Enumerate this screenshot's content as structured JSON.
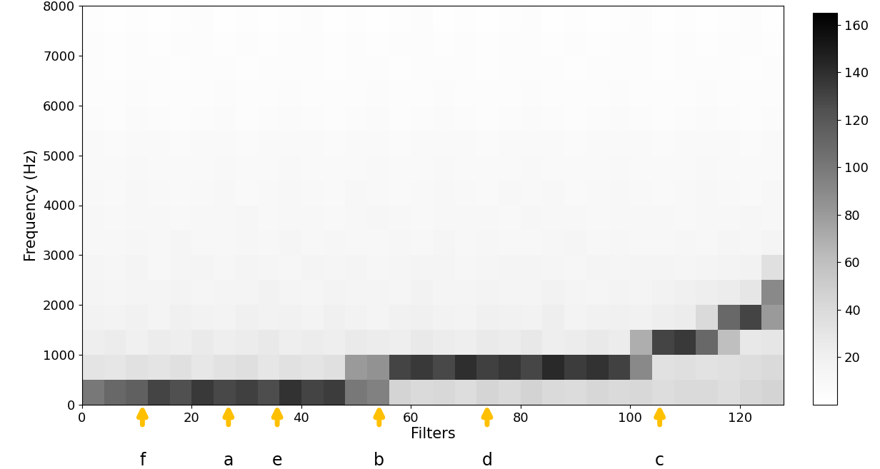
{
  "chart_data": {
    "type": "heatmap",
    "xlabel": "Filters",
    "ylabel": "Frequency (Hz)",
    "xlim": [
      0,
      128
    ],
    "xticks": [
      0,
      20,
      40,
      60,
      80,
      100,
      120
    ],
    "ylim": [
      0,
      8000
    ],
    "yticks": [
      0,
      1000,
      2000,
      3000,
      4000,
      5000,
      6000,
      7000,
      8000
    ],
    "color_range": [
      0,
      165
    ],
    "color_ticks": [
      20,
      40,
      60,
      80,
      100,
      120,
      140,
      160
    ],
    "cells": [
      [
        100,
        110,
        115,
        130,
        125,
        135,
        128,
        132,
        126,
        138,
        130,
        134,
        100,
        95,
        45,
        40,
        42,
        38,
        44,
        40,
        46,
        41,
        39,
        43,
        40,
        42,
        38,
        40,
        41,
        37,
        42,
        45
      ],
      [
        32,
        30,
        34,
        31,
        35,
        29,
        33,
        36,
        30,
        34,
        31,
        35,
        80,
        85,
        130,
        135,
        128,
        140,
        132,
        136,
        129,
        142,
        134,
        138,
        131,
        90,
        34,
        36,
        33,
        35,
        38,
        40
      ],
      [
        22,
        24,
        21,
        25,
        23,
        26,
        22,
        24,
        27,
        23,
        25,
        22,
        26,
        24,
        23,
        27,
        25,
        22,
        26,
        24,
        28,
        23,
        25,
        27,
        24,
        70,
        130,
        135,
        110,
        60,
        28,
        30
      ],
      [
        18,
        17,
        19,
        16,
        20,
        18,
        17,
        21,
        18,
        19,
        17,
        20,
        18,
        16,
        19,
        21,
        18,
        17,
        20,
        19,
        18,
        22,
        17,
        19,
        20,
        19,
        22,
        24,
        40,
        110,
        130,
        80
      ],
      [
        15,
        14,
        16,
        15,
        17,
        14,
        15,
        16,
        18,
        15,
        14,
        17,
        16,
        15,
        14,
        18,
        16,
        15,
        17,
        16,
        15,
        18,
        16,
        14,
        17,
        16,
        18,
        20,
        22,
        25,
        30,
        90
      ],
      [
        14,
        13,
        15,
        12,
        14,
        16,
        13,
        15,
        14,
        13,
        16,
        14,
        15,
        13,
        14,
        16,
        15,
        13,
        14,
        15,
        16,
        14,
        13,
        15,
        14,
        16,
        15,
        14,
        16,
        17,
        18,
        35
      ],
      [
        12,
        11,
        13,
        12,
        14,
        11,
        12,
        13,
        12,
        14,
        11,
        13,
        12,
        12,
        13,
        11,
        14,
        12,
        13,
        12,
        11,
        13,
        14,
        12,
        13,
        12,
        11,
        13,
        12,
        14,
        13,
        15
      ],
      [
        11,
        10,
        12,
        11,
        10,
        12,
        11,
        13,
        10,
        11,
        12,
        10,
        11,
        13,
        12,
        10,
        11,
        12,
        11,
        10,
        13,
        11,
        12,
        10,
        11,
        12,
        11,
        10,
        12,
        11,
        13,
        12
      ],
      [
        10,
        9,
        11,
        10,
        9,
        10,
        11,
        9,
        10,
        12,
        10,
        9,
        11,
        10,
        9,
        10,
        11,
        10,
        9,
        12,
        10,
        11,
        9,
        10,
        11,
        10,
        9,
        10,
        11,
        10,
        9,
        11
      ],
      [
        9,
        8,
        10,
        9,
        8,
        9,
        10,
        8,
        9,
        10,
        9,
        8,
        9,
        10,
        8,
        9,
        10,
        9,
        8,
        9,
        10,
        9,
        8,
        9,
        10,
        9,
        8,
        9,
        10,
        9,
        8,
        9
      ],
      [
        8,
        7,
        9,
        8,
        7,
        8,
        9,
        7,
        8,
        9,
        8,
        7,
        8,
        9,
        7,
        8,
        9,
        8,
        7,
        8,
        9,
        8,
        7,
        8,
        9,
        8,
        7,
        8,
        9,
        8,
        7,
        8
      ],
      [
        6,
        5,
        7,
        6,
        5,
        6,
        7,
        5,
        6,
        7,
        6,
        5,
        6,
        7,
        5,
        6,
        7,
        6,
        5,
        6,
        7,
        6,
        5,
        6,
        7,
        6,
        5,
        6,
        7,
        6,
        5,
        6
      ],
      [
        5,
        4,
        6,
        5,
        4,
        5,
        6,
        4,
        5,
        6,
        5,
        4,
        5,
        6,
        4,
        5,
        6,
        5,
        4,
        5,
        6,
        5,
        4,
        5,
        6,
        5,
        4,
        5,
        6,
        5,
        4,
        5
      ],
      [
        4,
        3,
        5,
        4,
        3,
        4,
        5,
        3,
        4,
        5,
        4,
        3,
        4,
        5,
        3,
        4,
        5,
        4,
        3,
        4,
        5,
        4,
        3,
        4,
        5,
        4,
        3,
        4,
        5,
        4,
        3,
        4
      ],
      [
        4,
        3,
        4,
        3,
        4,
        5,
        3,
        4,
        3,
        4,
        5,
        3,
        4,
        3,
        4,
        5,
        3,
        4,
        3,
        4,
        5,
        3,
        4,
        3,
        4,
        5,
        3,
        4,
        3,
        4,
        5,
        3
      ],
      [
        3,
        2,
        3,
        2,
        3,
        4,
        2,
        3,
        2,
        3,
        4,
        2,
        3,
        2,
        3,
        4,
        2,
        3,
        2,
        3,
        4,
        2,
        3,
        2,
        3,
        4,
        2,
        3,
        2,
        3,
        4,
        2
      ]
    ],
    "annotations": [
      {
        "text": "f",
        "x": 11
      },
      {
        "text": "a",
        "x": 26.7
      },
      {
        "text": "e",
        "x": 35.6
      },
      {
        "text": "b",
        "x": 54.2
      },
      {
        "text": "d",
        "x": 73.9
      },
      {
        "text": "c",
        "x": 105.4
      }
    ]
  }
}
